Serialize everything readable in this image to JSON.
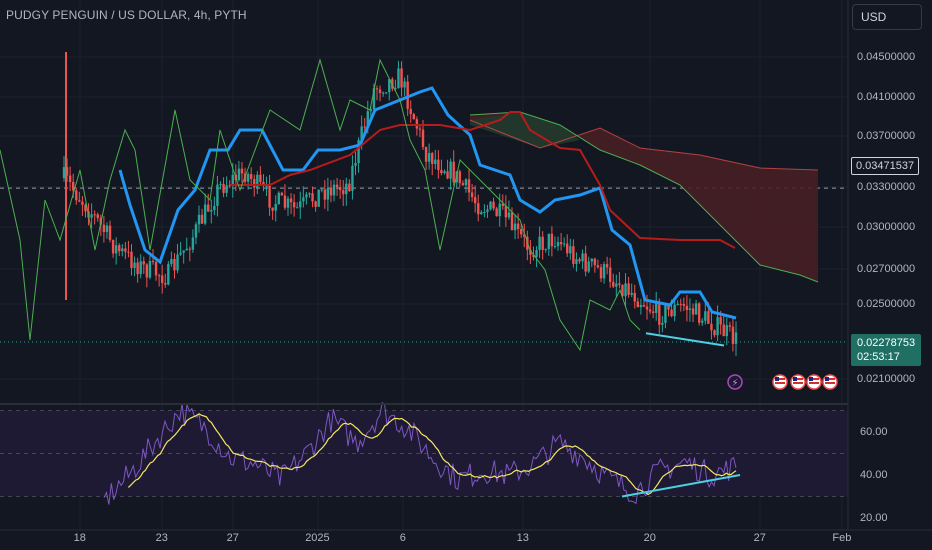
{
  "header": {
    "title": "PUDGY PENGUIN / US DOLLAR, 4h, PYTH",
    "currency_button": "USD"
  },
  "price_axis": {
    "ticks": [
      "0.04500000",
      "0.04100000",
      "0.03700000",
      "0.03300000",
      "0.03000000",
      "0.02700000",
      "0.02500000",
      "0.02100000"
    ],
    "dashed_level_label": "0.03471537",
    "current_price_label": "0.02278753",
    "countdown_label": "02:53:17"
  },
  "rsi_axis": {
    "ticks": [
      "60.00",
      "40.00",
      "20.00"
    ]
  },
  "time_axis": {
    "ticks": [
      "18",
      "23",
      "27",
      "2025",
      "6",
      "13",
      "20",
      "27",
      "Feb"
    ]
  },
  "colors": {
    "background": "#131722",
    "grid": "#1e222d",
    "bull": "#26a69a",
    "bear": "#ef5350",
    "conversion_line": "#2196f3",
    "base_line": "#b71c1c",
    "lagging_span": "#4caf50",
    "cloud_bear": "#4a1f24",
    "cloud_bull": "#1f3a2d",
    "rsi_line": "#7e57c2",
    "rsi_ma": "#f5e663",
    "rsi_band": "#1e1a33",
    "trendline": "#4dd0e1"
  },
  "icons": [
    "lightning-event-icon",
    "us-flag-event-icon"
  ],
  "chart_data": [
    {
      "type": "candlestick",
      "title": "PUDGY PENGUIN / US DOLLAR, 4h, PYTH",
      "x_ticks": [
        "18",
        "23",
        "27",
        "2025",
        "6",
        "13",
        "20",
        "27",
        "Feb"
      ],
      "y_ticks": [
        0.045,
        0.041,
        0.037,
        0.033,
        0.03,
        0.027,
        0.025,
        0.021
      ],
      "dashed_level": 0.03471537,
      "last_price": 0.02278753,
      "close_path": [
        0.0355,
        0.033,
        0.03,
        0.0285,
        0.0278,
        0.031,
        0.0348,
        0.036,
        0.0338,
        0.033,
        0.0345,
        0.035,
        0.0425,
        0.0435,
        0.0375,
        0.036,
        0.0335,
        0.0325,
        0.03,
        0.0308,
        0.029,
        0.028,
        0.0265,
        0.0248,
        0.0255,
        0.0242,
        0.0228
      ],
      "trendline": {
        "from": 0.0238,
        "to": 0.023
      }
    },
    {
      "type": "line",
      "title": "RSI",
      "y_ticks": [
        60,
        40,
        20
      ],
      "band": [
        30,
        70
      ],
      "rsi_path": [
        28,
        40,
        55,
        70,
        62,
        48,
        45,
        38,
        50,
        66,
        55,
        70,
        62,
        48,
        38,
        42,
        40,
        45,
        55,
        48,
        38,
        32,
        42,
        46,
        40,
        44
      ],
      "trendline": {
        "from": 30,
        "to": 40
      }
    }
  ]
}
